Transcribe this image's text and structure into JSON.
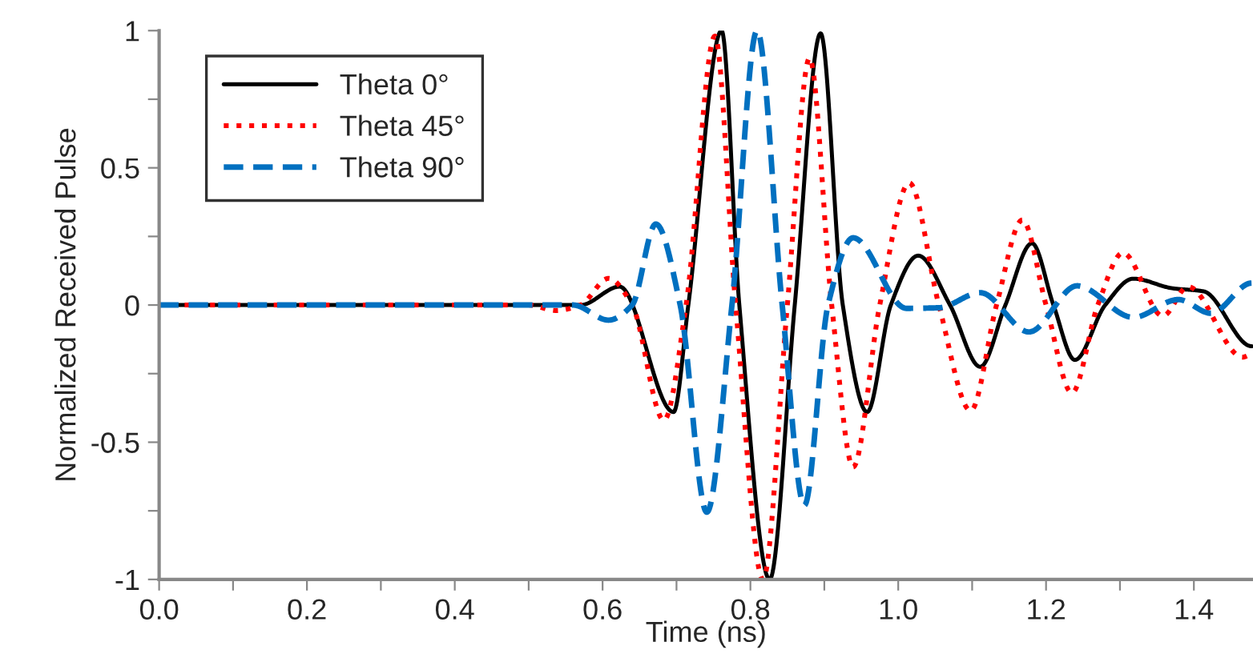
{
  "chart_data": {
    "type": "line",
    "xlabel": "Time (ns)",
    "ylabel": "Normalized Received Pulse",
    "xlim": [
      0,
      1.48
    ],
    "ylim": [
      -1,
      1
    ],
    "xticks": [
      {
        "value": 0,
        "label": "0.0"
      },
      {
        "value": 0.1,
        "label": null
      },
      {
        "value": 0.2,
        "label": "0.2"
      },
      {
        "value": 0.3,
        "label": null
      },
      {
        "value": 0.4,
        "label": "0.4"
      },
      {
        "value": 0.5,
        "label": null
      },
      {
        "value": 0.6,
        "label": "0.6"
      },
      {
        "value": 0.7,
        "label": null
      },
      {
        "value": 0.8,
        "label": "0.8"
      },
      {
        "value": 0.9,
        "label": null
      },
      {
        "value": 1.0,
        "label": "1.0"
      },
      {
        "value": 1.1,
        "label": null
      },
      {
        "value": 1.2,
        "label": "1.2"
      },
      {
        "value": 1.3,
        "label": null
      },
      {
        "value": 1.4,
        "label": "1.4"
      }
    ],
    "yticks": [
      -1,
      {
        "value": -0.75,
        "label": null
      },
      -0.5,
      {
        "value": -0.25,
        "label": null
      },
      0,
      {
        "value": 0.25,
        "label": null
      },
      0.5,
      {
        "value": 0.75,
        "label": null
      },
      1
    ],
    "grid": false,
    "legend": "top left",
    "marker": "none",
    "series": [
      {
        "name": "Theta 0°",
        "color": "#000000",
        "line_style": "solid",
        "x": [
          0,
          0.57,
          0.623,
          0.696,
          0.716,
          0.761,
          0.785,
          0.826,
          0.86,
          0.895,
          0.925,
          0.958,
          0.99,
          1.027,
          1.07,
          1.111,
          1.145,
          1.181,
          1.21,
          1.239,
          1.28,
          1.318,
          1.371,
          1.413,
          1.478
        ],
        "values": [
          0,
          0,
          0.067,
          -0.39,
          0,
          1,
          0,
          -1,
          0,
          0.99,
          0,
          -0.39,
          0,
          0.18,
          0,
          -0.225,
          0,
          0.225,
          0,
          -0.2,
          0,
          0.096,
          0.061,
          0.05,
          -0.15
        ]
      },
      {
        "name": "Theta 45°",
        "color": "#ff0000",
        "line_style": "dotted",
        "x": [
          0,
          0.5,
          0.537,
          0.57,
          0.608,
          0.64,
          0.683,
          0.713,
          0.752,
          0.78,
          0.817,
          0.85,
          0.88,
          0.91,
          0.939,
          0.975,
          1.015,
          1.055,
          1.098,
          1.133,
          1.168,
          1.2,
          1.235,
          1.27,
          1.304,
          1.358,
          1.392,
          1.466,
          1.478
        ],
        "values": [
          0,
          0,
          -0.02,
          0,
          0.097,
          0,
          -0.42,
          0,
          0.98,
          0,
          -1,
          0,
          0.9,
          0,
          -0.59,
          0,
          0.445,
          0,
          -0.385,
          0,
          0.31,
          0,
          -0.32,
          0,
          0.19,
          -0.04,
          0.067,
          -0.19,
          -0.18
        ]
      },
      {
        "name": "Theta 90°",
        "color": "#0070c0",
        "line_style": "dashed",
        "x": [
          0,
          0.56,
          0.608,
          0.64,
          0.672,
          0.705,
          0.741,
          0.775,
          0.809,
          0.843,
          0.873,
          0.905,
          0.939,
          1.011,
          1.055,
          1.111,
          1.177,
          1.242,
          1.318,
          1.379,
          1.423,
          1.478
        ],
        "values": [
          0,
          0,
          -0.055,
          0,
          0.295,
          0,
          -0.755,
          0,
          1,
          0,
          -0.73,
          0,
          0.245,
          -0.012,
          -0.01,
          0.045,
          -0.098,
          0.07,
          -0.045,
          0.02,
          -0.03,
          0.08
        ]
      }
    ]
  }
}
